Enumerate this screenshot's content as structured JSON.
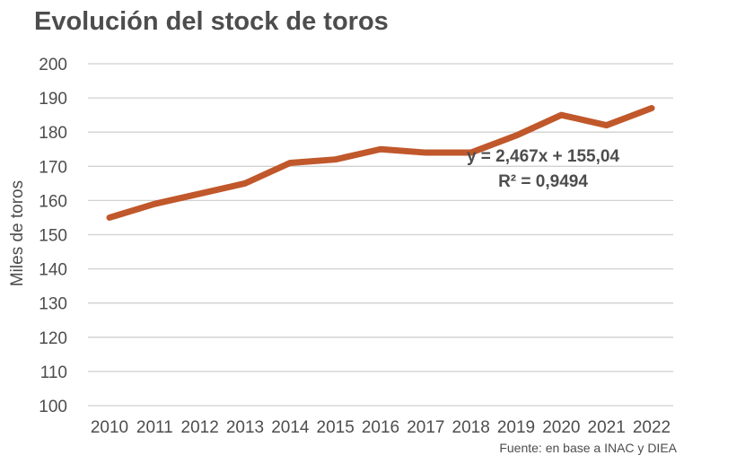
{
  "chart_data": {
    "type": "line",
    "title": "Evolución del stock de toros",
    "ylabel": "Miles de toros",
    "xlabel": "",
    "categories": [
      "2010",
      "2011",
      "2012",
      "2013",
      "2014",
      "2015",
      "2016",
      "2017",
      "2018",
      "2019",
      "2020",
      "2021",
      "2022"
    ],
    "series": [
      {
        "values": [
          155,
          159,
          162,
          165,
          171,
          172,
          175,
          174,
          174,
          179,
          185,
          182,
          187
        ],
        "color": "#c0582b"
      }
    ],
    "ylim": [
      100,
      200
    ],
    "yticks": [
      100,
      110,
      120,
      130,
      140,
      150,
      160,
      170,
      180,
      190,
      200
    ],
    "grid": true,
    "trendline": {
      "equation": "y = 2,467x + 155,04",
      "r2": "R² = 0,9494"
    },
    "source": "Fuente: en base a INAC y DIEA",
    "colors": {
      "line": "#c0582b",
      "grid": "#d0d0d0",
      "text": "#4d4d4d"
    }
  }
}
